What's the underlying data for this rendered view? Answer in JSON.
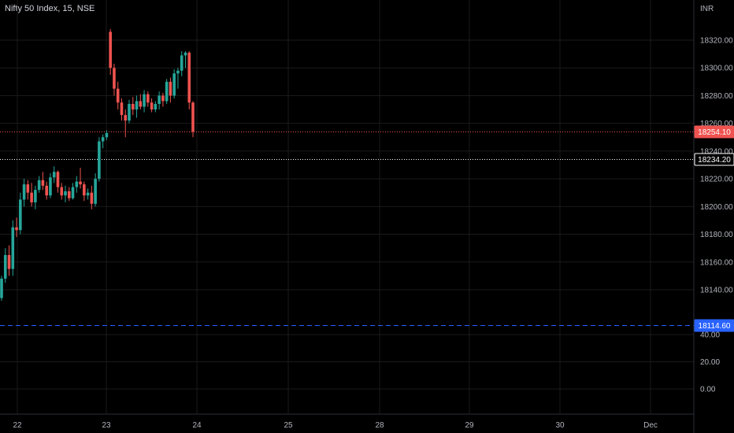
{
  "header": {
    "title": "Nifty 50 Index, 15, NSE"
  },
  "colors": {
    "up": "#26a69a",
    "down": "#ef5350",
    "grid": "#1a1a1a",
    "blue": "#2962ff",
    "bg": "#000000"
  },
  "chart_data": {
    "type": "candlestick",
    "currency": "INR",
    "price_axis": {
      "ticks": [
        "18320.00",
        "18300.00",
        "18280.00",
        "18260.00",
        "18240.00",
        "18220.00",
        "18200.00",
        "18180.00",
        "18160.00",
        "18140.00"
      ],
      "range": [
        18108,
        18340
      ]
    },
    "indicator_axis": {
      "ticks": [
        "40.00",
        "20.00",
        "0.00"
      ],
      "range": [
        -12,
        48
      ]
    },
    "x_axis": {
      "ticks": [
        "22",
        "23",
        "24",
        "25",
        "28",
        "29",
        "30",
        "Dec"
      ]
    },
    "price_lines": [
      {
        "label": "18254.10",
        "value": 18254.1,
        "style": "dotted",
        "color": "#ef5350"
      },
      {
        "label": "18234.20",
        "value": 18234.2,
        "style": "dotted",
        "color": "#ffffff"
      },
      {
        "label": "18114.60",
        "value": 18114.6,
        "style": "dashed",
        "color": "#2962ff"
      }
    ],
    "candles": [
      [
        18134,
        18150,
        18132,
        18148
      ],
      [
        18148,
        18170,
        18145,
        18165
      ],
      [
        18165,
        18172,
        18150,
        18155
      ],
      [
        18155,
        18190,
        18150,
        18185
      ],
      [
        18185,
        18192,
        18178,
        18183
      ],
      [
        18183,
        18210,
        18180,
        18205
      ],
      [
        18205,
        18220,
        18200,
        18216
      ],
      [
        18216,
        18219,
        18205,
        18210
      ],
      [
        18210,
        18217,
        18200,
        18203
      ],
      [
        18203,
        18215,
        18198,
        18212
      ],
      [
        18212,
        18222,
        18210,
        18219
      ],
      [
        18219,
        18225,
        18212,
        18215
      ],
      [
        18215,
        18218,
        18205,
        18208
      ],
      [
        18208,
        18224,
        18206,
        18221
      ],
      [
        18221,
        18229,
        18217,
        18225
      ],
      [
        18225,
        18226,
        18210,
        18214
      ],
      [
        18214,
        18217,
        18205,
        18208
      ],
      [
        18208,
        18215,
        18203,
        18211
      ],
      [
        18211,
        18214,
        18204,
        18206
      ],
      [
        18206,
        18217,
        18205,
        18214
      ],
      [
        18214,
        18222,
        18210,
        18218
      ],
      [
        18218,
        18228,
        18213,
        18216
      ],
      [
        18216,
        18218,
        18204,
        18208
      ],
      [
        18208,
        18213,
        18205,
        18210
      ],
      [
        18210,
        18215,
        18198,
        18202
      ],
      [
        18202,
        18224,
        18200,
        18220
      ],
      [
        18220,
        18250,
        18218,
        18247
      ],
      [
        18247,
        18252,
        18242,
        18250
      ],
      [
        18250,
        18255,
        18248,
        18253
      ],
      [
        18326,
        18328,
        18295,
        18300
      ],
      [
        18300,
        18303,
        18280,
        18285
      ],
      [
        18285,
        18290,
        18270,
        18275
      ],
      [
        18275,
        18278,
        18262,
        18266
      ],
      [
        18266,
        18270,
        18250,
        18262
      ],
      [
        18262,
        18277,
        18260,
        18274
      ],
      [
        18274,
        18279,
        18266,
        18270
      ],
      [
        18270,
        18280,
        18264,
        18276
      ],
      [
        18276,
        18281,
        18270,
        18272
      ],
      [
        18272,
        18284,
        18268,
        18281
      ],
      [
        18281,
        18283,
        18272,
        18275
      ],
      [
        18275,
        18278,
        18268,
        18270
      ],
      [
        18270,
        18276,
        18268,
        18274
      ],
      [
        18274,
        18283,
        18270,
        18280
      ],
      [
        18280,
        18282,
        18272,
        18276
      ],
      [
        18276,
        18292,
        18274,
        18290
      ],
      [
        18290,
        18293,
        18275,
        18280
      ],
      [
        18280,
        18299,
        18278,
        18296
      ],
      [
        18296,
        18300,
        18285,
        18298
      ],
      [
        18298,
        18312,
        18294,
        18309
      ],
      [
        18309,
        18312,
        18300,
        18311
      ],
      [
        18311,
        18312,
        18270,
        18275
      ],
      [
        18275,
        18276,
        18250,
        18254
      ]
    ]
  }
}
